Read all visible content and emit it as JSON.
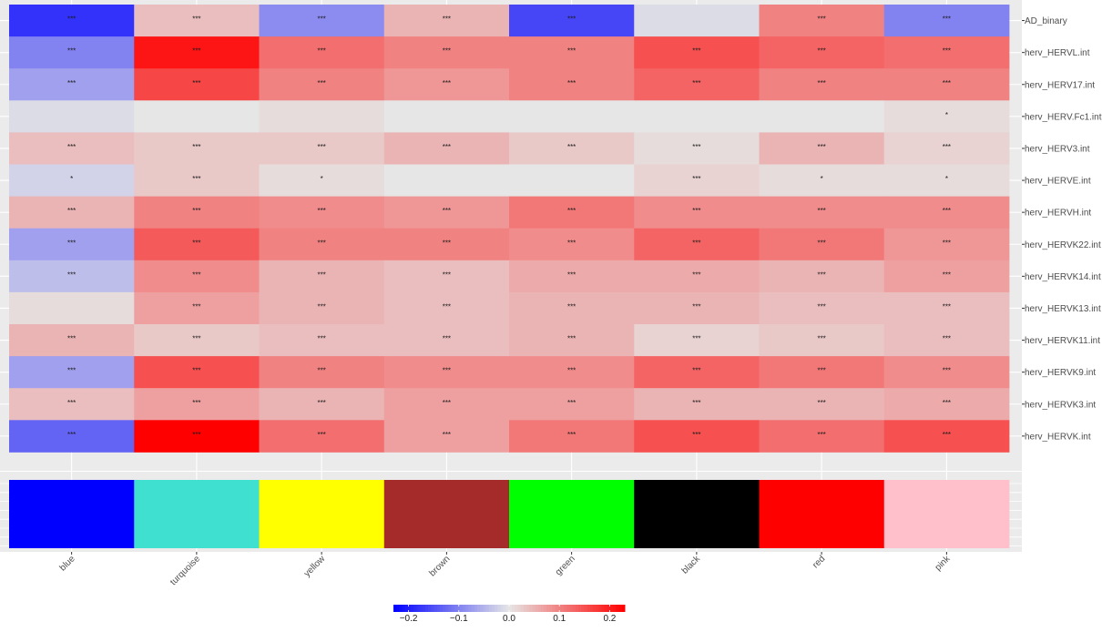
{
  "chart_data": {
    "type": "heatmap",
    "title": "",
    "xlabel": "",
    "ylabel": "",
    "modules": [
      "blue",
      "turquoise",
      "yellow",
      "brown",
      "green",
      "black",
      "red",
      "pink"
    ],
    "module_colors": [
      "#0000ff",
      "#40e0d0",
      "#ffff00",
      "#a52a2a",
      "#00ff00",
      "#000000",
      "#ff0000",
      "#ffc0cb"
    ],
    "traits": [
      "AD_binary",
      "herv_HERVL.int",
      "herv_HERV17.int",
      "herv_HERV.Fc1.int",
      "herv_HERV3.int",
      "herv_HERVE.int",
      "herv_HERVH.int",
      "herv_HERVK22.int",
      "herv_HERVK14.int",
      "herv_HERVK13.int",
      "herv_HERVK11.int",
      "herv_HERVK9.int",
      "herv_HERVK3.int",
      "herv_HERVK.int"
    ],
    "values": [
      [
        -0.18,
        0.04,
        -0.09,
        0.05,
        -0.16,
        -0.01,
        0.1,
        -0.1
      ],
      [
        -0.1,
        0.21,
        0.12,
        0.1,
        0.1,
        0.15,
        0.13,
        0.12
      ],
      [
        -0.07,
        0.16,
        0.1,
        0.08,
        0.1,
        0.13,
        0.1,
        0.1
      ],
      [
        -0.01,
        0.0,
        0.01,
        0.0,
        0.0,
        0.0,
        -0.0,
        0.01
      ],
      [
        0.04,
        0.03,
        0.03,
        0.05,
        0.03,
        0.01,
        0.05,
        0.02
      ],
      [
        -0.02,
        0.03,
        0.01,
        0.0,
        0.0,
        0.02,
        0.01,
        0.01
      ],
      [
        0.05,
        0.1,
        0.09,
        0.08,
        0.11,
        0.09,
        0.09,
        0.09
      ],
      [
        -0.07,
        0.14,
        0.1,
        0.1,
        0.09,
        0.13,
        0.11,
        0.08
      ],
      [
        -0.04,
        0.09,
        0.05,
        0.04,
        0.06,
        0.06,
        0.05,
        0.07
      ],
      [
        0.01,
        0.07,
        0.05,
        0.04,
        0.05,
        0.05,
        0.04,
        0.04
      ],
      [
        0.05,
        0.03,
        0.04,
        0.04,
        0.05,
        0.02,
        0.03,
        0.04
      ],
      [
        -0.07,
        0.15,
        0.1,
        0.09,
        0.09,
        0.13,
        0.11,
        0.09
      ],
      [
        0.04,
        0.07,
        0.05,
        0.07,
        0.07,
        0.05,
        0.05,
        0.06
      ],
      [
        -0.13,
        0.23,
        0.12,
        0.07,
        0.11,
        0.15,
        0.12,
        0.15
      ]
    ],
    "significance": [
      [
        "***",
        "***",
        "***",
        "***",
        "***",
        "",
        "***",
        "***"
      ],
      [
        "***",
        "***",
        "***",
        "***",
        "***",
        "***",
        "***",
        "***"
      ],
      [
        "***",
        "***",
        "***",
        "***",
        "***",
        "***",
        "***",
        "***"
      ],
      [
        "",
        "",
        "",
        "",
        "",
        "",
        "",
        "*"
      ],
      [
        "***",
        "***",
        "***",
        "***",
        "***",
        "***",
        "***",
        "***"
      ],
      [
        "*",
        "***",
        "*",
        "",
        "",
        "***",
        "*",
        "*"
      ],
      [
        "***",
        "***",
        "***",
        "***",
        "***",
        "***",
        "***",
        "***"
      ],
      [
        "***",
        "***",
        "***",
        "***",
        "***",
        "***",
        "***",
        "***"
      ],
      [
        "***",
        "***",
        "***",
        "***",
        "***",
        "***",
        "***",
        "***"
      ],
      [
        "",
        "***",
        "***",
        "***",
        "***",
        "***",
        "***",
        "***"
      ],
      [
        "***",
        "***",
        "***",
        "***",
        "***",
        "***",
        "***",
        "***"
      ],
      [
        "***",
        "***",
        "***",
        "***",
        "***",
        "***",
        "***",
        "***"
      ],
      [
        "***",
        "***",
        "***",
        "***",
        "***",
        "***",
        "***",
        "***"
      ],
      [
        "***",
        "***",
        "***",
        "***",
        "***",
        "***",
        "***",
        "***"
      ]
    ],
    "color_scale": {
      "low": "#0000ff",
      "mid": "#e6e6e6",
      "high": "#ff0000",
      "limits": [
        -0.23,
        0.23
      ],
      "ticks": [
        -0.2,
        -0.1,
        0.0,
        0.1,
        0.2
      ],
      "tick_labels": [
        "−0.2",
        "−0.1",
        "0.0",
        "0.1",
        "0.2"
      ]
    },
    "grid": true,
    "legend_position": "bottom"
  }
}
